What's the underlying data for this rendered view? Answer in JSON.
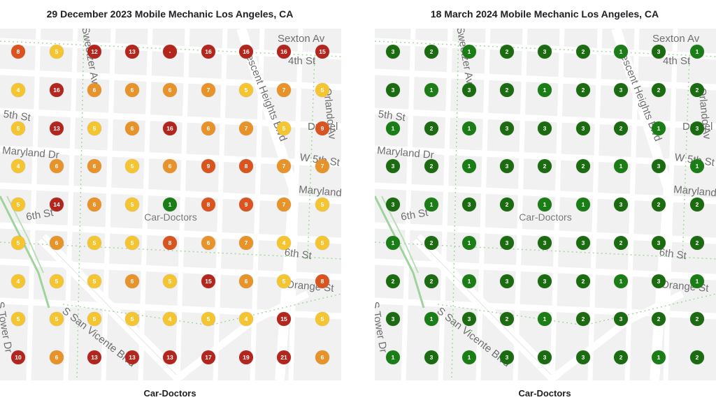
{
  "colors": {
    "rank_1": "#1b7d15",
    "rank_2_3": "#1b6b10",
    "rank_4_5": "#f5c531",
    "rank_6_7": "#e8922a",
    "rank_8_9": "#d9541e",
    "rank_10_plus": "#b3261e",
    "not_ranked": "#b3261e"
  },
  "panels": [
    {
      "title": "29 December 2023 Mobile Mechanic Los Angeles, CA",
      "caption": "Car-Doctors",
      "center_label": "Car-Doctors",
      "grid": [
        [
          "8",
          "5",
          "12",
          "13",
          "-",
          "16",
          "16",
          "16",
          "15"
        ],
        [
          "4",
          "16",
          "6",
          "6",
          "6",
          "7",
          "5",
          "7",
          "5"
        ],
        [
          "5",
          "13",
          "5",
          "6",
          "16",
          "6",
          "7",
          "5",
          "9"
        ],
        [
          "4",
          "6",
          "6",
          "5",
          "6",
          "9",
          "8",
          "7",
          "7"
        ],
        [
          "5",
          "14",
          "6",
          "5",
          "1",
          "8",
          "9",
          "7",
          "5"
        ],
        [
          "5",
          "6",
          "5",
          "5",
          "8",
          "6",
          "7",
          "4",
          "5"
        ],
        [
          "4",
          "5",
          "5",
          "6",
          "5",
          "15",
          "6",
          "5",
          "8"
        ],
        [
          "5",
          "5",
          "5",
          "5",
          "4",
          "5",
          "4",
          "15",
          "5"
        ],
        [
          "10",
          "6",
          "13",
          "13",
          "13",
          "17",
          "19",
          "21",
          "6"
        ]
      ],
      "street_labels": [
        "Sexton Av",
        "Crescent Heights Blvd",
        "4th St",
        "5th St",
        "Maryland Dr",
        "W 5th St",
        "Maryland",
        "6th St",
        "6th St",
        "Orange St",
        "S San Vicente Blvd",
        "S Tower Dr",
        "Orlando Av",
        "Sweetzer Av",
        "Drexel"
      ]
    },
    {
      "title": "18 March 2024 Mobile Mechanic Los Angeles, CA",
      "caption": "Car-Doctors",
      "center_label": "Car-Doctors",
      "grid": [
        [
          "3",
          "2",
          "1",
          "2",
          "3",
          "2",
          "1",
          "3",
          "1"
        ],
        [
          "3",
          "1",
          "3",
          "2",
          "1",
          "2",
          "3",
          "2",
          "2"
        ],
        [
          "1",
          "2",
          "1",
          "3",
          "3",
          "3",
          "2",
          "1",
          "3"
        ],
        [
          "3",
          "2",
          "1",
          "3",
          "2",
          "2",
          "1",
          "3",
          "1"
        ],
        [
          "3",
          "1",
          "3",
          "2",
          "1",
          "1",
          "3",
          "2",
          "2"
        ],
        [
          "1",
          "2",
          "1",
          "3",
          "3",
          "3",
          "2",
          "3",
          "2"
        ],
        [
          "2",
          "2",
          "1",
          "3",
          "3",
          "2",
          "1",
          "3",
          "1"
        ],
        [
          "3",
          "1",
          "3",
          "2",
          "1",
          "2",
          "3",
          "2",
          "2"
        ],
        [
          "1",
          "3",
          "1",
          "3",
          "3",
          "3",
          "2",
          "1",
          "2"
        ]
      ],
      "street_labels": [
        "Sexton Av",
        "Crescent Heights Blvd",
        "4th St",
        "5th St",
        "Maryland Dr",
        "W 5th St",
        "Maryland",
        "6th St",
        "6th St",
        "Orange St",
        "S San Vicente Blvd",
        "S Tower Dr",
        "Orlando Av",
        "Sweetzer Av",
        "Drexel"
      ]
    }
  ]
}
